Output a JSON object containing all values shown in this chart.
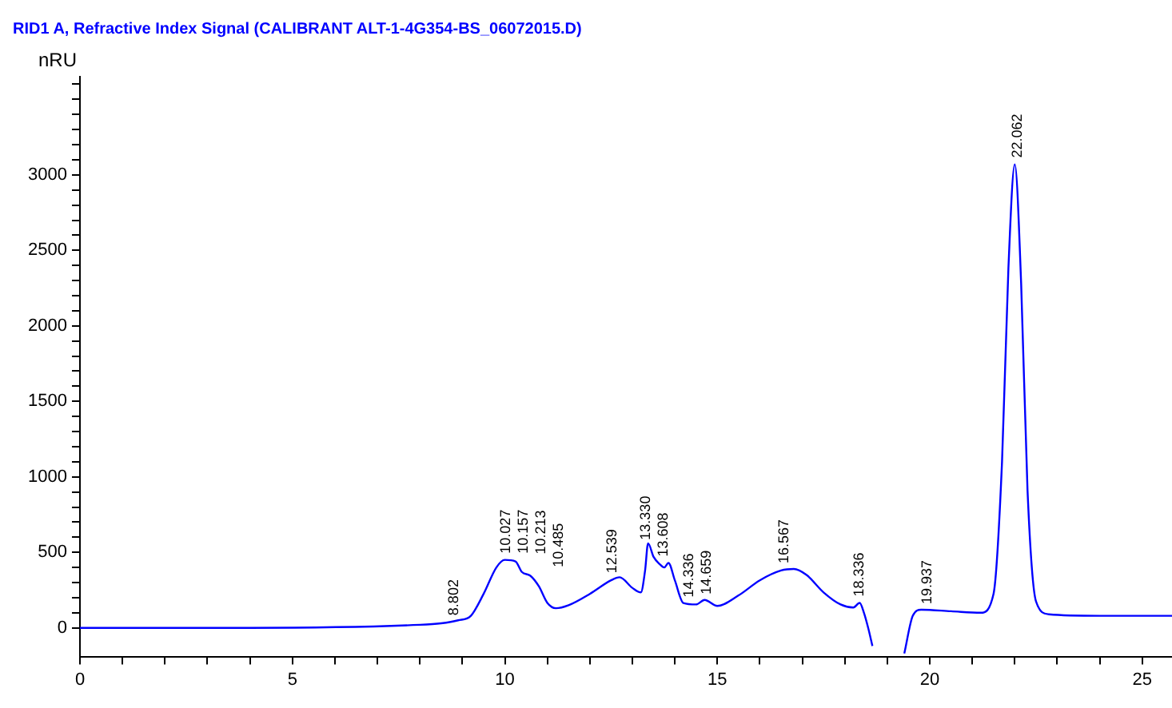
{
  "chart_data": {
    "type": "line",
    "title": "RID1 A, Refractive Index Signal (CALIBRANT ALT-1-4G354-BS_06072015.D)",
    "ylabel": "nRU",
    "xlim": [
      0,
      25.7
    ],
    "ylim": [
      -190,
      3650
    ],
    "xticks": [
      0,
      {
        "value": 1,
        "label": null
      },
      {
        "value": 2,
        "label": null
      },
      {
        "value": 3,
        "label": null
      },
      {
        "value": 4,
        "label": null
      },
      5,
      {
        "value": 6,
        "label": null
      },
      {
        "value": 7,
        "label": null
      },
      {
        "value": 8,
        "label": null
      },
      {
        "value": 9,
        "label": null
      },
      10,
      {
        "value": 11,
        "label": null
      },
      {
        "value": 12,
        "label": null
      },
      {
        "value": 13,
        "label": null
      },
      {
        "value": 14,
        "label": null
      },
      15,
      {
        "value": 16,
        "label": null
      },
      {
        "value": 17,
        "label": null
      },
      {
        "value": 18,
        "label": null
      },
      {
        "value": 19,
        "label": null
      },
      20,
      {
        "value": 21,
        "label": null
      },
      {
        "value": 22,
        "label": null
      },
      {
        "value": 23,
        "label": null
      },
      {
        "value": 24,
        "label": null
      },
      25
    ],
    "yticks": [
      0,
      {
        "value": 100,
        "label": null
      },
      {
        "value": 200,
        "label": null
      },
      {
        "value": 300,
        "label": null
      },
      {
        "value": 400,
        "label": null
      },
      500,
      {
        "value": 600,
        "label": null
      },
      {
        "value": 700,
        "label": null
      },
      {
        "value": 800,
        "label": null
      },
      {
        "value": 900,
        "label": null
      },
      1000,
      {
        "value": 1100,
        "label": null
      },
      {
        "value": 1200,
        "label": null
      },
      {
        "value": 1300,
        "label": null
      },
      {
        "value": 1400,
        "label": null
      },
      1500,
      {
        "value": 1600,
        "label": null
      },
      {
        "value": 1700,
        "label": null
      },
      {
        "value": 1800,
        "label": null
      },
      {
        "value": 1900,
        "label": null
      },
      2000,
      {
        "value": 2100,
        "label": null
      },
      {
        "value": 2200,
        "label": null
      },
      {
        "value": 2300,
        "label": null
      },
      {
        "value": 2400,
        "label": null
      },
      2500,
      {
        "value": 2600,
        "label": null
      },
      {
        "value": 2700,
        "label": null
      },
      {
        "value": 2800,
        "label": null
      },
      {
        "value": 2900,
        "label": null
      },
      3000,
      {
        "value": 3100,
        "label": null
      },
      {
        "value": 3200,
        "label": null
      },
      {
        "value": 3300,
        "label": null
      },
      {
        "value": 3400,
        "label": null
      },
      {
        "value": 3500,
        "label": null
      },
      {
        "value": 3600,
        "label": null
      }
    ],
    "grid": false,
    "legend": false,
    "marker": "none",
    "line_style": "solid",
    "series": [
      {
        "color": "#0000ff",
        "x": [
          0,
          4,
          8,
          8.5,
          8.9,
          9.2,
          9.5,
          9.8,
          10.0,
          10.25,
          10.4,
          10.6,
          10.8,
          11.0,
          11.2,
          11.5,
          12.0,
          12.5,
          12.7,
          13.0,
          13.2,
          13.3,
          13.37,
          13.5,
          13.65,
          13.75,
          13.85,
          14.0,
          14.2,
          14.5,
          14.7,
          15.0,
          15.5,
          16.0,
          16.5,
          16.8,
          17.1,
          17.5,
          17.9,
          18.2,
          18.35,
          18.45,
          18.55,
          18.65,
          18.8,
          19.3,
          19.4,
          19.6,
          19.8,
          20.5,
          21.2,
          21.5,
          21.7,
          21.85,
          22.0,
          22.15,
          22.3,
          22.5,
          22.8,
          24,
          25.7
        ],
        "values": [
          0,
          0,
          20,
          30,
          50,
          80,
          225,
          400,
          450,
          440,
          370,
          345,
          275,
          165,
          130,
          150,
          225,
          315,
          335,
          265,
          235,
          380,
          560,
          470,
          420,
          400,
          430,
          315,
          165,
          155,
          185,
          145,
          215,
          315,
          380,
          390,
          350,
          235,
          155,
          135,
          165,
          100,
          0,
          -120,
          null,
          null,
          -170,
          80,
          120,
          110,
          100,
          225,
          1100,
          2380,
          3070,
          2280,
          910,
          175,
          90,
          80,
          80
        ]
      }
    ],
    "annotations": [
      {
        "text": "8.802",
        "x": 8.802,
        "y": 40
      },
      {
        "text": "10.027",
        "x": 10.027,
        "y": 450
      },
      {
        "text": "10.157",
        "x": 10.157,
        "y": 450
      },
      {
        "text": "10.213",
        "x": 10.213,
        "y": 445
      },
      {
        "text": "10.485",
        "x": 10.485,
        "y": 360
      },
      {
        "text": "12.539",
        "x": 12.539,
        "y": 320
      },
      {
        "text": "13.330",
        "x": 13.33,
        "y": 540
      },
      {
        "text": "13.608",
        "x": 13.608,
        "y": 430
      },
      {
        "text": "14.336",
        "x": 14.336,
        "y": 160
      },
      {
        "text": "14.659",
        "x": 14.659,
        "y": 180
      },
      {
        "text": "16.567",
        "x": 16.567,
        "y": 385
      },
      {
        "text": "18.336",
        "x": 18.336,
        "y": 165
      },
      {
        "text": "19.937",
        "x": 19.937,
        "y": 115
      },
      {
        "text": "22.062",
        "x": 22.062,
        "y": 3070
      }
    ]
  }
}
